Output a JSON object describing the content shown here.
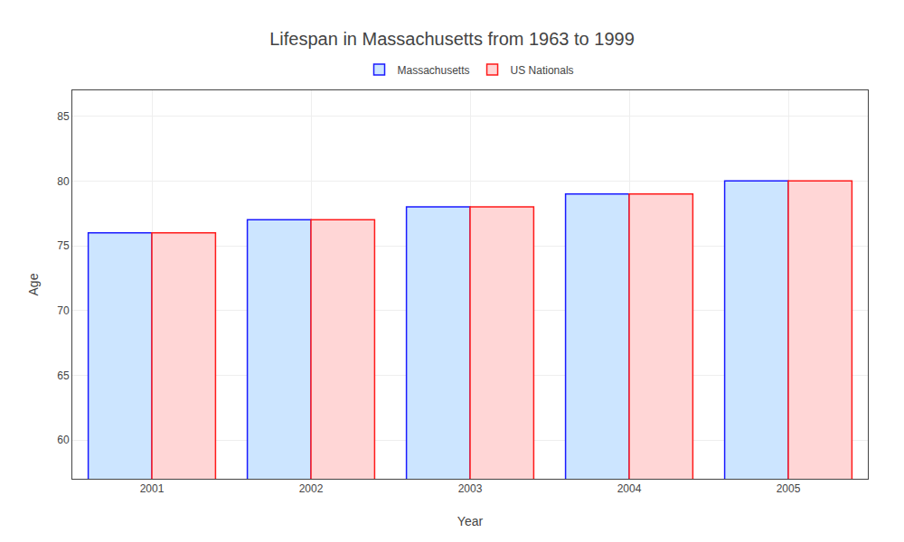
{
  "chart_data": {
    "type": "bar",
    "title": "Lifespan in Massachusetts from 1963 to 1999",
    "xlabel": "Year",
    "ylabel": "Age",
    "categories": [
      2001,
      2002,
      2003,
      2004,
      2005
    ],
    "series": [
      {
        "name": "Massachusetts",
        "color": "#cce5ff",
        "values": [
          76,
          77,
          78,
          79,
          80
        ]
      },
      {
        "name": "US Nationals",
        "color": "#ffd6d6",
        "values": [
          76,
          77,
          78,
          79,
          80
        ]
      }
    ],
    "ylim": [
      57,
      87
    ],
    "yticks": [
      60,
      65,
      70,
      75,
      80,
      85
    ],
    "grid": true,
    "legend": "top"
  }
}
